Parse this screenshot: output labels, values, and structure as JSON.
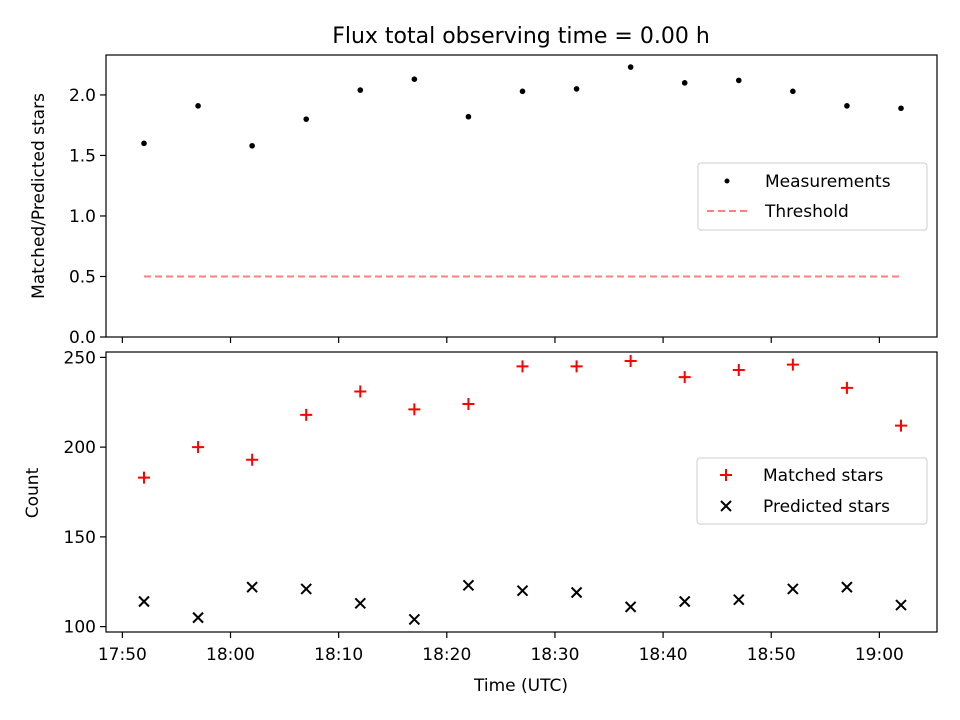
{
  "chart_data": [
    {
      "type": "scatter",
      "title": "Flux total observing time = 0.00 h",
      "xlabel": "",
      "ylabel": "Matched/Predicted stars",
      "ylim": [
        0,
        2.33
      ],
      "yticks": [
        "0.0",
        "0.5",
        "1.0",
        "1.5",
        "2.0"
      ],
      "ytick_values": [
        0,
        0.5,
        1.0,
        1.5,
        2.0
      ],
      "legend_position": "center-right",
      "x": [
        "17:52",
        "17:57",
        "18:02",
        "18:07",
        "18:12",
        "18:17",
        "18:22",
        "18:27",
        "18:32",
        "18:37",
        "18:42",
        "18:47",
        "18:52",
        "18:57",
        "19:02"
      ],
      "series": [
        {
          "name": "Measurements",
          "marker": "dot",
          "color": "#000000",
          "values": [
            1.6,
            1.91,
            1.58,
            1.8,
            2.04,
            2.13,
            1.82,
            2.03,
            2.05,
            2.23,
            2.1,
            2.12,
            2.03,
            1.91,
            1.89
          ]
        },
        {
          "name": "Threshold",
          "marker": "dashed-line",
          "color": "#ff7f7f",
          "values": [
            0.5,
            0.5,
            0.5,
            0.5,
            0.5,
            0.5,
            0.5,
            0.5,
            0.5,
            0.5,
            0.5,
            0.5,
            0.5,
            0.5,
            0.5
          ]
        }
      ]
    },
    {
      "type": "scatter",
      "title": "",
      "xlabel": "Time (UTC)",
      "ylabel": "Count",
      "ylim": [
        97,
        253
      ],
      "yticks": [
        "100",
        "150",
        "200",
        "250"
      ],
      "ytick_values": [
        100,
        150,
        200,
        250
      ],
      "xticks": [
        "17:50",
        "18:00",
        "18:10",
        "18:20",
        "18:30",
        "18:40",
        "18:50",
        "19:00"
      ],
      "legend_position": "center-right",
      "x": [
        "17:52",
        "17:57",
        "18:02",
        "18:07",
        "18:12",
        "18:17",
        "18:22",
        "18:27",
        "18:32",
        "18:37",
        "18:42",
        "18:47",
        "18:52",
        "18:57",
        "19:02"
      ],
      "series": [
        {
          "name": "Matched stars",
          "marker": "plus",
          "color": "#ff0000",
          "values": [
            183,
            200,
            193,
            218,
            231,
            221,
            224,
            245,
            245,
            248,
            239,
            243,
            246,
            233,
            212
          ]
        },
        {
          "name": "Predicted stars",
          "marker": "x",
          "color": "#000000",
          "values": [
            114,
            105,
            122,
            121,
            113,
            104,
            123,
            120,
            119,
            111,
            114,
            115,
            121,
            122,
            112
          ]
        }
      ]
    }
  ]
}
